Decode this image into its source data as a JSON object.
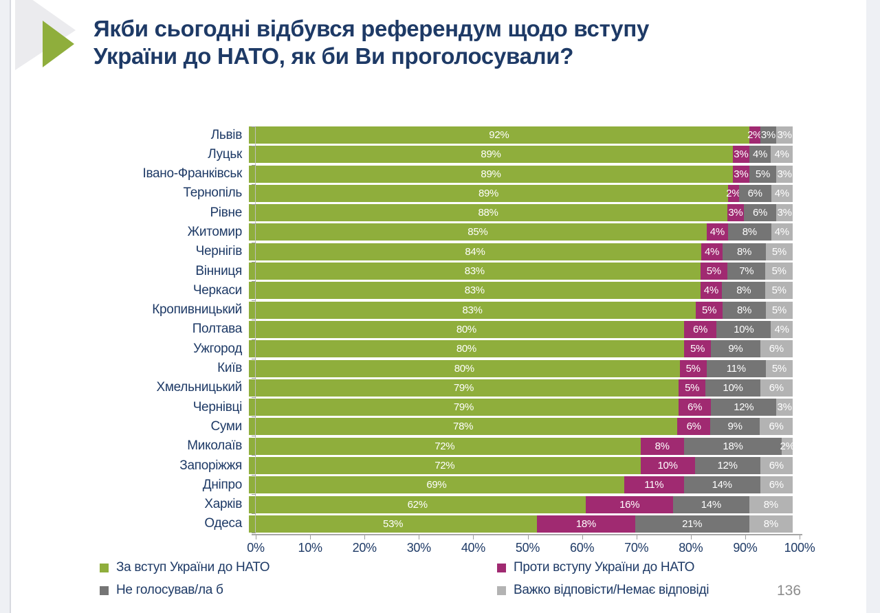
{
  "page_number": "136",
  "decoration": {
    "gray_arrow_color": "#ebebee",
    "green_arrow_color": "#8fae3c",
    "edge_strip_color": "#eef0f4"
  },
  "chart_data": {
    "type": "bar",
    "orientation": "horizontal-stacked",
    "title": "Якби сьогодні відбувся референдум щодо вступу України до НАТО, як би Ви проголосували?",
    "title_color": "#1e3a66",
    "categories": [
      "Львів",
      "Луцьк",
      "Івано-Франківськ",
      "Тернопіль",
      "Рівне",
      "Житомир",
      "Чернігів",
      "Вінниця",
      "Черкаси",
      "Кропивницький",
      "Полтава",
      "Ужгород",
      "Київ",
      "Хмельницький",
      "Чернівці",
      "Суми",
      "Миколаїв",
      "Запоріжжя",
      "Дніпро",
      "Харків",
      "Одеса"
    ],
    "series": [
      {
        "name": "За вступ України до НАТО",
        "color": "#8fae3c",
        "values": [
          92,
          89,
          89,
          89,
          88,
          85,
          84,
          83,
          83,
          83,
          80,
          80,
          80,
          79,
          79,
          78,
          72,
          72,
          69,
          62,
          53
        ]
      },
      {
        "name": "Проти вступу України до НАТО",
        "color": "#a02a71",
        "values": [
          2,
          3,
          3,
          2,
          3,
          4,
          4,
          5,
          4,
          5,
          6,
          5,
          5,
          5,
          6,
          6,
          8,
          10,
          11,
          16,
          18
        ]
      },
      {
        "name": "Не голосував/ла б",
        "color": "#757575",
        "values": [
          3,
          4,
          5,
          6,
          6,
          8,
          8,
          7,
          8,
          8,
          10,
          9,
          11,
          10,
          12,
          9,
          18,
          12,
          14,
          14,
          21
        ]
      },
      {
        "name": "Важко відповісти/Немає відповіді",
        "color": "#b3b3b3",
        "values": [
          3,
          4,
          3,
          4,
          3,
          4,
          5,
          5,
          5,
          5,
          4,
          6,
          5,
          6,
          3,
          6,
          2,
          6,
          6,
          8,
          8
        ]
      }
    ],
    "x_ticks": [
      "0%",
      "10%",
      "20%",
      "30%",
      "40%",
      "50%",
      "60%",
      "70%",
      "80%",
      "90%",
      "100%"
    ],
    "xlim": [
      0,
      100
    ],
    "grid": false,
    "legend_position": "bottom",
    "value_label_suffix": "%"
  }
}
